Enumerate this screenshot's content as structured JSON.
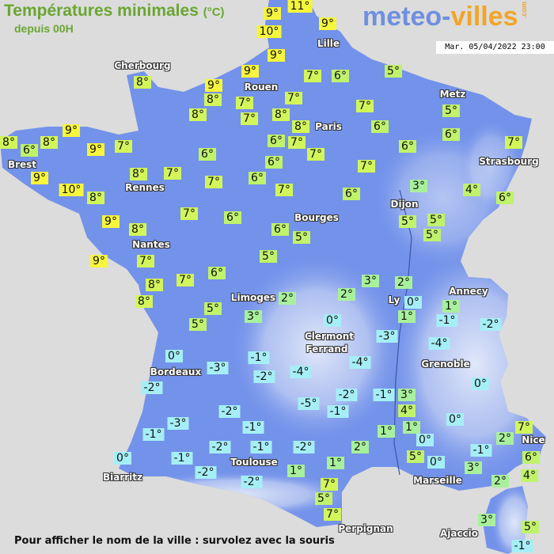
{
  "header": {
    "title": "Températures minimales",
    "unit": "(°C)",
    "subtitle": "depuis 00H",
    "logo_part1": "meteo-",
    "logo_part2": "villes",
    "logo_suffix": ".com",
    "datetime": "Mar. 05/04/2022 23:00"
  },
  "colors": {
    "land": "#7392ea",
    "sea": "#dcdcdc",
    "title": "#6aa632",
    "warm": "#f6f63c",
    "mild": "#d2f65a",
    "cool": "#a8f09c",
    "cold": "#a6eef6"
  },
  "temperatures": [
    "9°",
    "11°",
    "9°",
    "10°",
    "9°",
    "9°",
    "7°",
    "6°",
    "5°",
    "8°",
    "9°",
    "8°",
    "7°",
    "7°",
    "7°",
    "8°",
    "7°",
    "8°",
    "8°",
    "6°",
    "5°",
    "6°",
    "9°",
    "8°",
    "6°",
    "8°",
    "9°",
    "7°",
    "6°",
    "7°",
    "7°",
    "6°",
    "7°",
    "6°",
    "6°",
    "9°",
    "8°",
    "7°",
    "7°",
    "6°",
    "7°",
    "10°",
    "8°",
    "7°",
    "6°",
    "3°",
    "4°",
    "6°",
    "9°",
    "8°",
    "7°",
    "6°",
    "6°",
    "5°",
    "5°",
    "5°",
    "5°",
    "9°",
    "7°",
    "5°",
    "8°",
    "7°",
    "6°",
    "8°",
    "5°",
    "5°",
    "3°",
    "2°",
    "2°",
    "3°",
    "2°",
    "0°",
    "1°",
    "1°",
    "-1°",
    "-2°",
    "0°",
    "-3°",
    "-4°",
    "0°",
    "-1°",
    "-3°",
    "-2°",
    "-4°",
    "-4°",
    "-2°",
    "0°",
    "-5°",
    "-2°",
    "-1°",
    "3°",
    "-1°",
    "4°",
    "-2°",
    "-3°",
    "0°",
    "-1°",
    "-1°",
    "1°",
    "1°",
    "7°",
    "2°",
    "0°",
    "-2°",
    "-1°",
    "-2°",
    "2°",
    "5°",
    "-1°",
    "6°",
    "0°",
    "-1°",
    "0°",
    "1°",
    "3°",
    "-2°",
    "1°",
    "4°",
    "2°",
    "-2°",
    "7°",
    "5°",
    "7°",
    "3°",
    "5°",
    "-1°"
  ],
  "cities": [
    "Cherbourg",
    "Lille",
    "Rouen",
    "Paris",
    "Metz",
    "Strasbourg",
    "Brest",
    "Rennes",
    "Nantes",
    "Bourges",
    "Dijon",
    "Ly",
    "Annecy",
    "Limoges",
    "Clermont",
    "Ferrand",
    "Grenoble",
    "Bordeaux",
    "Toulouse",
    "Biarritz",
    "Marseille",
    "Perpignan",
    "Nice",
    "Ajaccio"
  ],
  "footer": "Pour afficher le nom de la ville : survolez avec la souris"
}
